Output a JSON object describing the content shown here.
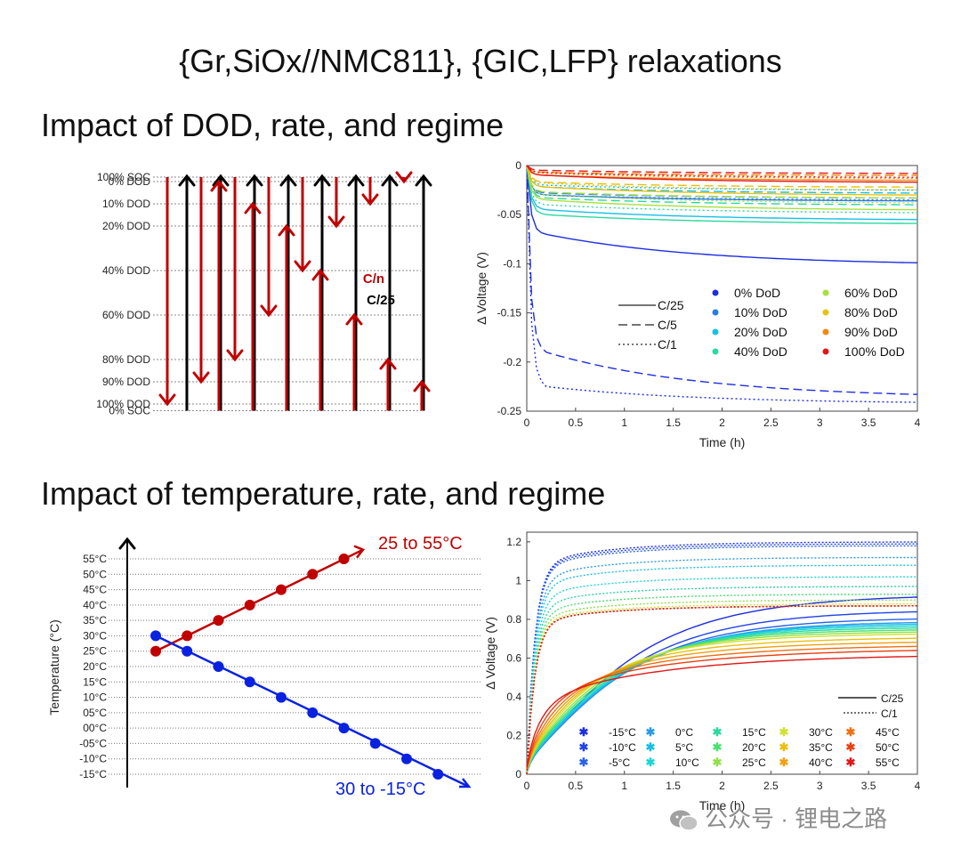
{
  "title": "{Gr,SiOx//NMC811}, {GIC,LFP} relaxations",
  "section1": "Impact of DOD, rate, and regime",
  "section2": "Impact of temperature, rate, and regime",
  "colors": {
    "red": "#c00000",
    "black": "#000000",
    "blue": "#0a22e0"
  },
  "watermark": "公众号 · 锂电之路",
  "chart_data": [
    {
      "type": "diagram",
      "name": "dod-regime",
      "levels": [
        {
          "label": "100% SOC",
          "dod": -2
        },
        {
          "label": "0% DOD",
          "dod": 0
        },
        {
          "label": "10% DOD",
          "dod": 10
        },
        {
          "label": "20% DOD",
          "dod": 20
        },
        {
          "label": "40% DOD",
          "dod": 40
        },
        {
          "label": "60% DOD",
          "dod": 60
        },
        {
          "label": "80% DOD",
          "dod": 80
        },
        {
          "label": "90% DOD",
          "dod": 90
        },
        {
          "label": "100% DOD",
          "dod": 100
        },
        {
          "label": "0% SOC",
          "dod": 103
        }
      ],
      "pairs": [
        {
          "red_up_to": 0,
          "black_up_to": 0,
          "red_down_to": 100,
          "black_down_to": 100
        },
        {
          "red_up_to": 0,
          "black_up_to": 0,
          "red_down_to": 90,
          "black_down_to": 100
        },
        {
          "red_up_to": 10,
          "black_up_to": 0,
          "red_down_to": 80,
          "black_down_to": 100
        },
        {
          "red_up_to": 20,
          "black_up_to": 0,
          "red_down_to": 60,
          "black_down_to": 100
        },
        {
          "red_up_to": 40,
          "black_up_to": 0,
          "red_down_to": 40,
          "black_down_to": 100
        },
        {
          "red_up_to": 60,
          "black_up_to": 0,
          "red_down_to": 20,
          "black_down_to": 100
        },
        {
          "red_up_to": 80,
          "black_up_to": 0,
          "red_down_to": 10,
          "black_down_to": 100
        },
        {
          "red_up_to": 90,
          "black_up_to": 0,
          "red_down_to": 0,
          "black_down_to": 100
        }
      ],
      "label_cn": "C/n",
      "label_c25": "C/25"
    },
    {
      "type": "line",
      "name": "dod-relaxation",
      "xlabel": "Time (h)",
      "ylabel": "Δ Voltage (V)",
      "xlim": [
        0,
        4
      ],
      "ylim": [
        -0.25,
        0
      ],
      "xticks": [
        "0",
        "0.5",
        "1",
        "1.5",
        "2",
        "2.5",
        "3",
        "3.5",
        "4"
      ],
      "yticks": [
        "0",
        "-0.05",
        "-0.1",
        "-0.15",
        "-0.2",
        "-0.25"
      ],
      "rate_legend": [
        "C/25",
        "C/5",
        "C/1"
      ],
      "series": [
        {
          "name": "0% DoD",
          "color": "#1d2de0",
          "finals": {
            "C/25": -0.099,
            "C/5": -0.233,
            "C/1": -0.241
          },
          "knees": {
            "C/25": -0.07,
            "C/5": -0.19,
            "C/1": -0.225
          }
        },
        {
          "name": "10% DoD",
          "color": "#2a7de0",
          "finals": {
            "C/25": -0.036,
            "C/5": -0.033,
            "C/1": -0.035
          },
          "knees": {
            "C/25": -0.03,
            "C/5": -0.028,
            "C/1": -0.03
          }
        },
        {
          "name": "20% DoD",
          "color": "#16c0e6",
          "finals": {
            "C/25": -0.055,
            "C/5": -0.028,
            "C/1": -0.025
          },
          "knees": {
            "C/25": -0.045,
            "C/5": -0.022,
            "C/1": -0.02
          }
        },
        {
          "name": "40% DoD",
          "color": "#2ad8a0",
          "finals": {
            "C/25": -0.059,
            "C/5": -0.04,
            "C/1": -0.048
          },
          "knees": {
            "C/25": -0.05,
            "C/5": -0.033,
            "C/1": -0.04
          }
        },
        {
          "name": "60% DoD",
          "color": "#a8e03a",
          "finals": {
            "C/25": -0.045,
            "C/5": -0.033,
            "C/1": -0.038
          },
          "knees": {
            "C/25": -0.035,
            "C/5": -0.027,
            "C/1": -0.03
          }
        },
        {
          "name": "80% DoD",
          "color": "#e8c010",
          "finals": {
            "C/25": -0.03,
            "C/5": -0.022,
            "C/1": -0.025
          },
          "knees": {
            "C/25": -0.022,
            "C/5": -0.017,
            "C/1": -0.018
          }
        },
        {
          "name": "90% DoD",
          "color": "#f08a10",
          "finals": {
            "C/25": -0.015,
            "C/5": -0.01,
            "C/1": -0.013
          },
          "knees": {
            "C/25": -0.01,
            "C/5": -0.007,
            "C/1": -0.008
          }
        },
        {
          "name": "100% DoD",
          "color": "#e01818",
          "finals": {
            "C/25": -0.017,
            "C/5": -0.008,
            "C/1": -0.012
          },
          "knees": {
            "C/25": -0.01,
            "C/5": -0.005,
            "C/1": -0.007
          }
        }
      ]
    },
    {
      "type": "line",
      "name": "temperature-profile",
      "ylabel": "Temperature (°C)",
      "yticks": [
        "55°C",
        "50°C",
        "45°C",
        "40°C",
        "35°C",
        "30°C",
        "25°C",
        "20°C",
        "15°C",
        "10°C",
        "05°C",
        "00°C",
        "-05°C",
        "-10°C",
        "-15°C"
      ],
      "tick_values": [
        55,
        50,
        45,
        40,
        35,
        30,
        25,
        20,
        15,
        10,
        5,
        0,
        -5,
        -10,
        -15
      ],
      "series": [
        {
          "name": "25 to 55°C",
          "color": "#c00000",
          "values": [
            25,
            30,
            35,
            40,
            45,
            50,
            55
          ]
        },
        {
          "name": "30 to -15°C",
          "color": "#0a22e0",
          "values": [
            30,
            25,
            20,
            15,
            10,
            5,
            0,
            -5,
            -10,
            -15
          ]
        }
      ]
    },
    {
      "type": "line",
      "name": "temperature-relaxation",
      "xlabel": "Time (h)",
      "ylabel": "Δ Voltage (V)",
      "xlim": [
        0,
        4
      ],
      "ylim": [
        0,
        1.25
      ],
      "xticks": [
        "0",
        "0.5",
        "1",
        "1.5",
        "2",
        "2.5",
        "3",
        "3.5",
        "4"
      ],
      "yticks": [
        "0",
        "0.2",
        "0.4",
        "0.6",
        "0.8",
        "1",
        "1.2"
      ],
      "rate_legend": [
        "C/25",
        "C/1"
      ],
      "series": [
        {
          "name": "-15°C",
          "color": "#1d2de0",
          "c25": 0.87,
          "c1": 1.2
        },
        {
          "name": "-10°C",
          "color": "#2244e6",
          "c25": 0.79,
          "c1": 1.19
        },
        {
          "name": "-5°C",
          "color": "#2a62e6",
          "c25": 0.75,
          "c1": 1.18
        },
        {
          "name": "0°C",
          "color": "#2a9ae8",
          "c25": 0.73,
          "c1": 1.12
        },
        {
          "name": "5°C",
          "color": "#16bfe6",
          "c25": 0.72,
          "c1": 1.08
        },
        {
          "name": "10°C",
          "color": "#1ad6d6",
          "c25": 0.71,
          "c1": 1.02
        },
        {
          "name": "15°C",
          "color": "#2ad8a0",
          "c25": 0.7,
          "c1": 0.97
        },
        {
          "name": "20°C",
          "color": "#4ae070",
          "c25": 0.69,
          "c1": 0.93
        },
        {
          "name": "25°C",
          "color": "#90e04a",
          "c25": 0.68,
          "c1": 0.9
        },
        {
          "name": "30°C",
          "color": "#d0e030",
          "c25": 0.67,
          "c1": 0.88
        },
        {
          "name": "35°C",
          "color": "#e8c010",
          "c25": 0.65,
          "c1": 0.87
        },
        {
          "name": "40°C",
          "color": "#f0a010",
          "c25": 0.63,
          "c1": 0.87
        },
        {
          "name": "45°C",
          "color": "#ee7010",
          "c25": 0.61,
          "c1": 0.87
        },
        {
          "name": "50°C",
          "color": "#e84010",
          "c25": 0.59,
          "c1": 0.87
        },
        {
          "name": "55°C",
          "color": "#e01818",
          "c25": 0.56,
          "c1": 0.87
        }
      ]
    }
  ]
}
